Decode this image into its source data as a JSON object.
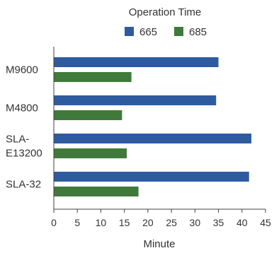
{
  "chart_data": {
    "type": "bar",
    "orientation": "horizontal",
    "title": "Operation Time",
    "xlabel": "Minute",
    "ylabel": "",
    "categories": [
      {
        "lines": [
          "M9600"
        ]
      },
      {
        "lines": [
          "M4800"
        ]
      },
      {
        "lines": [
          "SLA-",
          "E13200"
        ]
      },
      {
        "lines": [
          "SLA-32"
        ]
      }
    ],
    "series": [
      {
        "name": "665",
        "color": "#2e5aa0",
        "values": [
          35,
          34.5,
          42,
          41.5
        ]
      },
      {
        "name": "685",
        "color": "#3f7a3a",
        "values": [
          16.5,
          14.5,
          15.5,
          18
        ]
      }
    ],
    "xlim": [
      0,
      45
    ],
    "xticks": [
      0,
      5,
      10,
      15,
      20,
      25,
      30,
      35,
      40,
      45
    ],
    "legend": "top",
    "grid": false
  }
}
